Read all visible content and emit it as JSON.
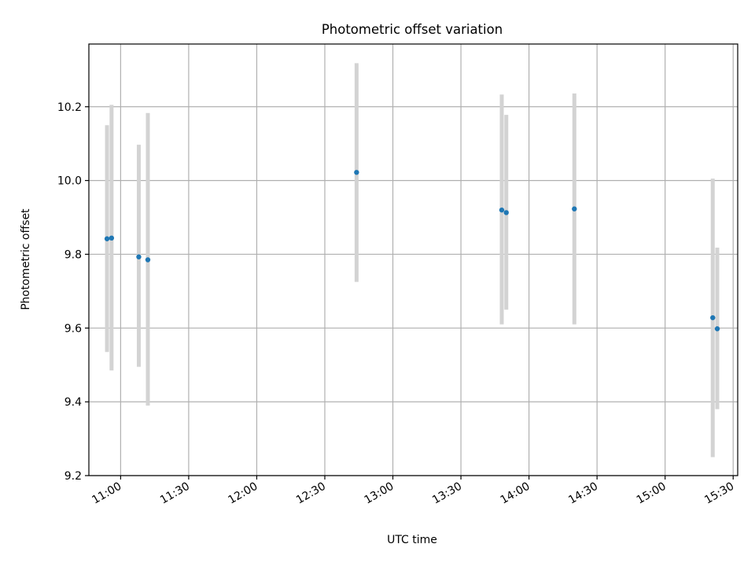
{
  "chart_data": {
    "type": "scatter",
    "title": "Photometric offset variation",
    "xlabel": "UTC time",
    "ylabel": "Photometric offset",
    "xlim": [
      "10:46",
      "15:32"
    ],
    "ylim": [
      9.2,
      10.37
    ],
    "x_ticks": [
      "11:00",
      "11:30",
      "12:00",
      "12:30",
      "13:00",
      "13:30",
      "14:00",
      "14:30",
      "15:00",
      "15:30"
    ],
    "y_ticks": [
      "9.2",
      "9.4",
      "9.6",
      "9.8",
      "10.0",
      "10.2"
    ],
    "grid": true,
    "marker_color": "#1f77b4",
    "errorbar_color": "#d3d3d3",
    "series": [
      {
        "points": [
          {
            "x": "10:54",
            "y": 9.842,
            "y_low": 9.535,
            "y_high": 10.15
          },
          {
            "x": "10:56",
            "y": 9.844,
            "y_low": 9.485,
            "y_high": 10.205
          },
          {
            "x": "11:08",
            "y": 9.793,
            "y_low": 9.495,
            "y_high": 10.097
          },
          {
            "x": "11:12",
            "y": 9.785,
            "y_low": 9.39,
            "y_high": 10.183
          },
          {
            "x": "12:44",
            "y": 10.022,
            "y_low": 9.725,
            "y_high": 10.318
          },
          {
            "x": "13:48",
            "y": 9.92,
            "y_low": 9.61,
            "y_high": 10.233
          },
          {
            "x": "13:50",
            "y": 9.913,
            "y_low": 9.65,
            "y_high": 10.178
          },
          {
            "x": "14:20",
            "y": 9.923,
            "y_low": 9.61,
            "y_high": 10.236
          },
          {
            "x": "15:21",
            "y": 9.628,
            "y_low": 9.25,
            "y_high": 10.005
          },
          {
            "x": "15:23",
            "y": 9.598,
            "y_low": 9.38,
            "y_high": 9.818
          }
        ]
      }
    ]
  }
}
